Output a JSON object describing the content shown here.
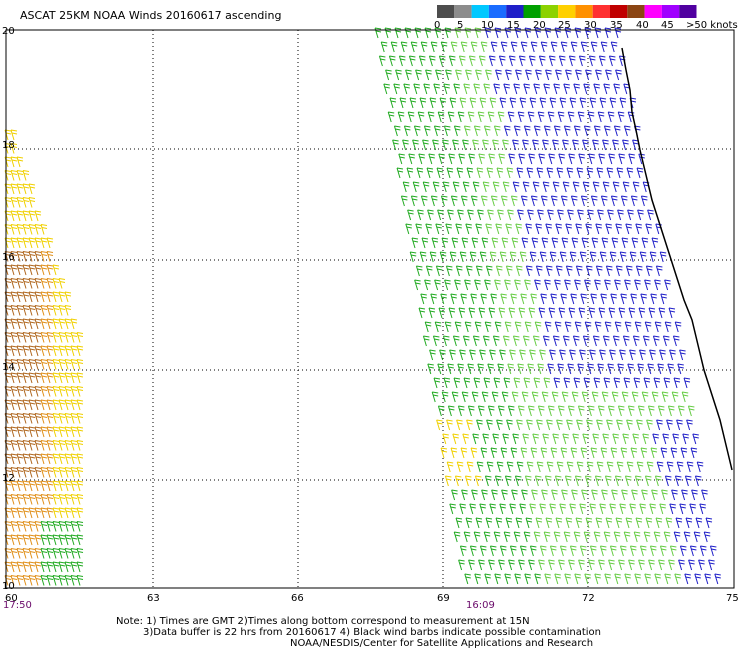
{
  "header": {
    "title": "ASCAT 25KM NOAA Winds 20160617 ascending"
  },
  "legend": {
    "ticks": [
      "0",
      "5",
      "10",
      "15",
      "20",
      "25",
      "30",
      "35",
      "40",
      "45",
      ">50 knots"
    ],
    "colors": [
      "#4d4d4d",
      "#8c8c8c",
      "#00c8ff",
      "#1a6cff",
      "#1f1fc8",
      "#00a000",
      "#8cd200",
      "#ffd000",
      "#ff9000",
      "#ff3030",
      "#c00000",
      "#8b4513",
      "#ff00ff",
      "#a000ff",
      "#5000a0"
    ]
  },
  "axes": {
    "lat_labels": [
      "20",
      "18",
      "16",
      "14",
      "12",
      "10"
    ],
    "lon_labels": [
      "60",
      "63",
      "66",
      "69",
      "72",
      "75"
    ]
  },
  "times": {
    "left": "17:50",
    "center": "16:09"
  },
  "notes": {
    "line1": "Note: 1) Times are GMT 2)Times along bottom correspond to measurement at 15N",
    "line2": "3)Data buffer is 22 hrs from 20160617 4) Black wind barbs indicate possible contamination",
    "line3": "NOAA/NESDIS/Center for Satellite Applications and Research"
  },
  "colors": {
    "blue": "#1f1fc8",
    "green": "#22aa22",
    "lightgreen": "#66cc44",
    "yellow": "#f0d000",
    "orange": "#e0901a",
    "brown": "#b06820",
    "coast": "#000000",
    "grid": "#000000"
  }
}
